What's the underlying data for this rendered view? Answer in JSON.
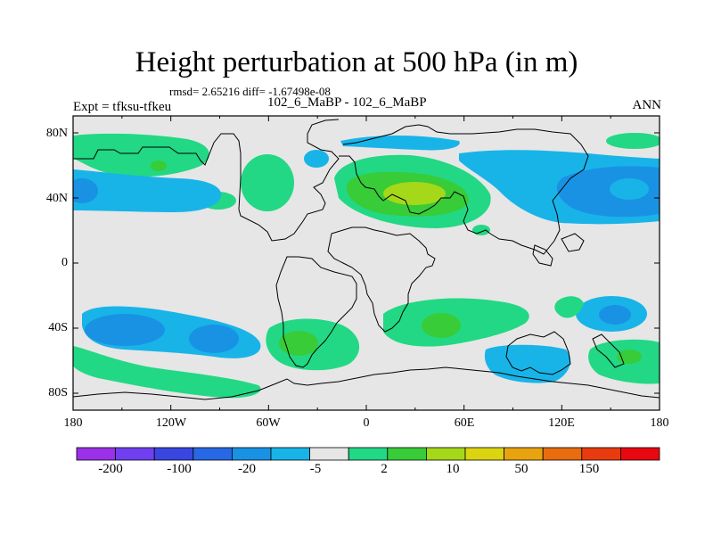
{
  "title": "Height perturbation at 500 hPa (in m)",
  "stats": "rmsd= 2.65216 diff= -1.67498e-08",
  "subtitle": "102_6_MaBP - 102_6_MaBP",
  "experiment": "Expt = tfksu-tfkeu",
  "season": "ANN",
  "lat_ticks": [
    "80N",
    "40N",
    "0",
    "40S",
    "80S"
  ],
  "lon_ticks": [
    "180",
    "120W",
    "60W",
    "0",
    "60E",
    "120E",
    "180"
  ],
  "colorbar": {
    "labels": [
      "-200",
      "-100",
      "-20",
      "-5",
      "2",
      "10",
      "50",
      "150"
    ],
    "colors": [
      "#9b30e8",
      "#7040f0",
      "#3a46e0",
      "#2768e4",
      "#1992e4",
      "#18b4e8",
      "#e6e6e6",
      "#22d884",
      "#38cc38",
      "#a4d818",
      "#dcd410",
      "#e8a410",
      "#e86c10",
      "#e83c10",
      "#e80810"
    ]
  },
  "fill_colors": {
    "ocean_bg": "#e6e6e6",
    "light_green": "#22d884",
    "green": "#38cc38",
    "yellow_green": "#a4d818",
    "light_blue": "#18b4e8",
    "blue": "#1992e4"
  }
}
